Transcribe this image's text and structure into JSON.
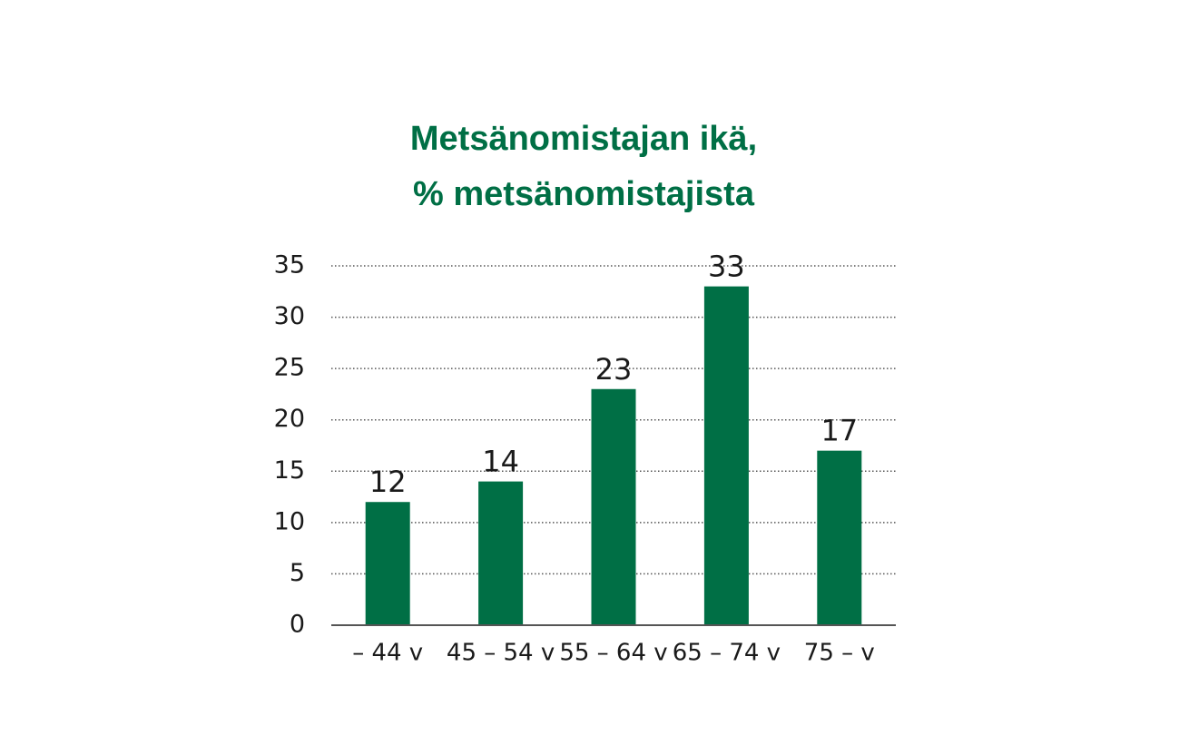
{
  "chart_data": {
    "type": "bar",
    "title": [
      "Metsänomistajan ikä,",
      "% metsänomistajista"
    ],
    "categories": [
      "– 44 v",
      "45 – 54 v",
      "55 – 64 v",
      "65 – 74 v",
      "75 – v"
    ],
    "values": [
      12,
      14,
      23,
      33,
      17
    ],
    "color": "#006f45",
    "ylim": [
      0,
      35
    ],
    "yticks": [
      0,
      5,
      10,
      15,
      20,
      25,
      30,
      35
    ],
    "grid": true
  }
}
